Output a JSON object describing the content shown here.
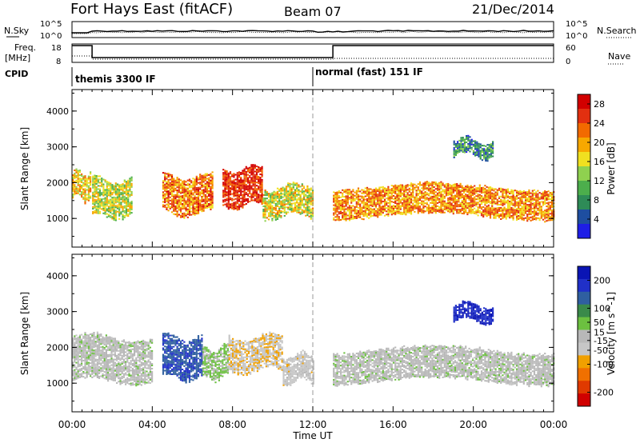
{
  "header": {
    "station": "Fort Hays East (fitACF)",
    "beam": "Beam 07",
    "date": "21/Dec/2014"
  },
  "summary": {
    "nsky_label": "N.Sky",
    "nsearch_label": "N.Search",
    "freq_label_1": "Freq.",
    "freq_label_2": "[MHz]",
    "nave_label": "Nave",
    "cpid_label": "CPID",
    "noise_ticks": [
      "10^5",
      "10^0"
    ],
    "freq_ticks": [
      "18",
      "8"
    ],
    "nave_ticks": [
      "60",
      "0"
    ],
    "cpid_1": "themis 3300 IF",
    "cpid_2": "normal (fast) 151 IF"
  },
  "colors": {
    "power_scale": [
      "#1e1ee6",
      "#1e4ea0",
      "#2e8b57",
      "#4cae4c",
      "#8fd14f",
      "#f0e020",
      "#f7a800",
      "#f26a00",
      "#e23010",
      "#d20000"
    ],
    "velocity_scale": [
      "#0a14b4",
      "#2030c8",
      "#2f5fa0",
      "#3a8a4a",
      "#6cc040",
      "#b8b8b8",
      "#c6c6c6",
      "#f0a000",
      "#f07000",
      "#e03a00",
      "#d00000"
    ]
  },
  "chart_data": [
    {
      "type": "heatmap",
      "panel": "power",
      "ylabel": "Slant Range [km]",
      "xlabel": "Time UT",
      "xlim": [
        "00:00",
        "24:00"
      ],
      "ylim": [
        200,
        4600
      ],
      "x_ticks": [
        "00:00",
        "04:00",
        "08:00",
        "12:00",
        "16:00",
        "20:00",
        "00:00"
      ],
      "y_ticks": [
        1000,
        2000,
        3000,
        4000
      ],
      "colorbar": {
        "label": "Power [dB]",
        "ticks": [
          4,
          8,
          12,
          16,
          20,
          24,
          28
        ],
        "range": [
          0,
          30
        ]
      },
      "echo_regions": [
        {
          "t_start": 0.0,
          "t_end": 0.9,
          "range_low": 1500,
          "range_high": 2300,
          "typical_power": 18
        },
        {
          "t_start": 1.0,
          "t_end": 3.0,
          "range_low": 1000,
          "range_high": 2100,
          "typical_power": 15
        },
        {
          "t_start": 4.5,
          "t_end": 7.0,
          "range_low": 1100,
          "range_high": 2200,
          "typical_power": 22
        },
        {
          "t_start": 7.5,
          "t_end": 9.5,
          "range_low": 1300,
          "range_high": 2400,
          "typical_power": 27
        },
        {
          "t_start": 9.5,
          "t_end": 12.0,
          "range_low": 1000,
          "range_high": 1900,
          "typical_power": 16
        },
        {
          "t_start": 13.0,
          "t_end": 24.0,
          "range_low": 1000,
          "range_high": 1900,
          "typical_power": 21
        },
        {
          "t_start": 19.0,
          "t_end": 21.0,
          "range_low": 2700,
          "range_high": 3200,
          "typical_power": 8
        }
      ]
    },
    {
      "type": "heatmap",
      "panel": "velocity",
      "ylabel": "Slant Range [km]",
      "xlabel": "Time UT",
      "xlim": [
        "00:00",
        "24:00"
      ],
      "ylim": [
        200,
        4600
      ],
      "x_ticks": [
        "00:00",
        "04:00",
        "08:00",
        "12:00",
        "16:00",
        "20:00",
        "00:00"
      ],
      "y_ticks": [
        1000,
        2000,
        3000,
        4000
      ],
      "colorbar": {
        "label": "Velocity [m s^-1]",
        "ticks": [
          200,
          100,
          50,
          15,
          -15,
          -50,
          -100,
          -200
        ],
        "range": [
          -250,
          250
        ]
      },
      "echo_regions": [
        {
          "t_start": 0.0,
          "t_end": 4.0,
          "range_low": 1000,
          "range_high": 2300,
          "typical_velocity": 0
        },
        {
          "t_start": 4.5,
          "t_end": 6.5,
          "range_low": 1100,
          "range_high": 2300,
          "typical_velocity": 150
        },
        {
          "t_start": 6.5,
          "t_end": 7.8,
          "range_low": 1100,
          "range_high": 2000,
          "typical_velocity": 30
        },
        {
          "t_start": 7.8,
          "t_end": 10.5,
          "range_low": 1300,
          "range_high": 2300,
          "typical_velocity": -60
        },
        {
          "t_start": 10.5,
          "t_end": 12.0,
          "range_low": 1000,
          "range_high": 1800,
          "typical_velocity": -40
        },
        {
          "t_start": 13.0,
          "t_end": 24.0,
          "range_low": 1000,
          "range_high": 1950,
          "typical_velocity": 0
        },
        {
          "t_start": 19.0,
          "t_end": 21.0,
          "range_low": 2700,
          "range_high": 3200,
          "typical_velocity": 200
        }
      ]
    }
  ]
}
